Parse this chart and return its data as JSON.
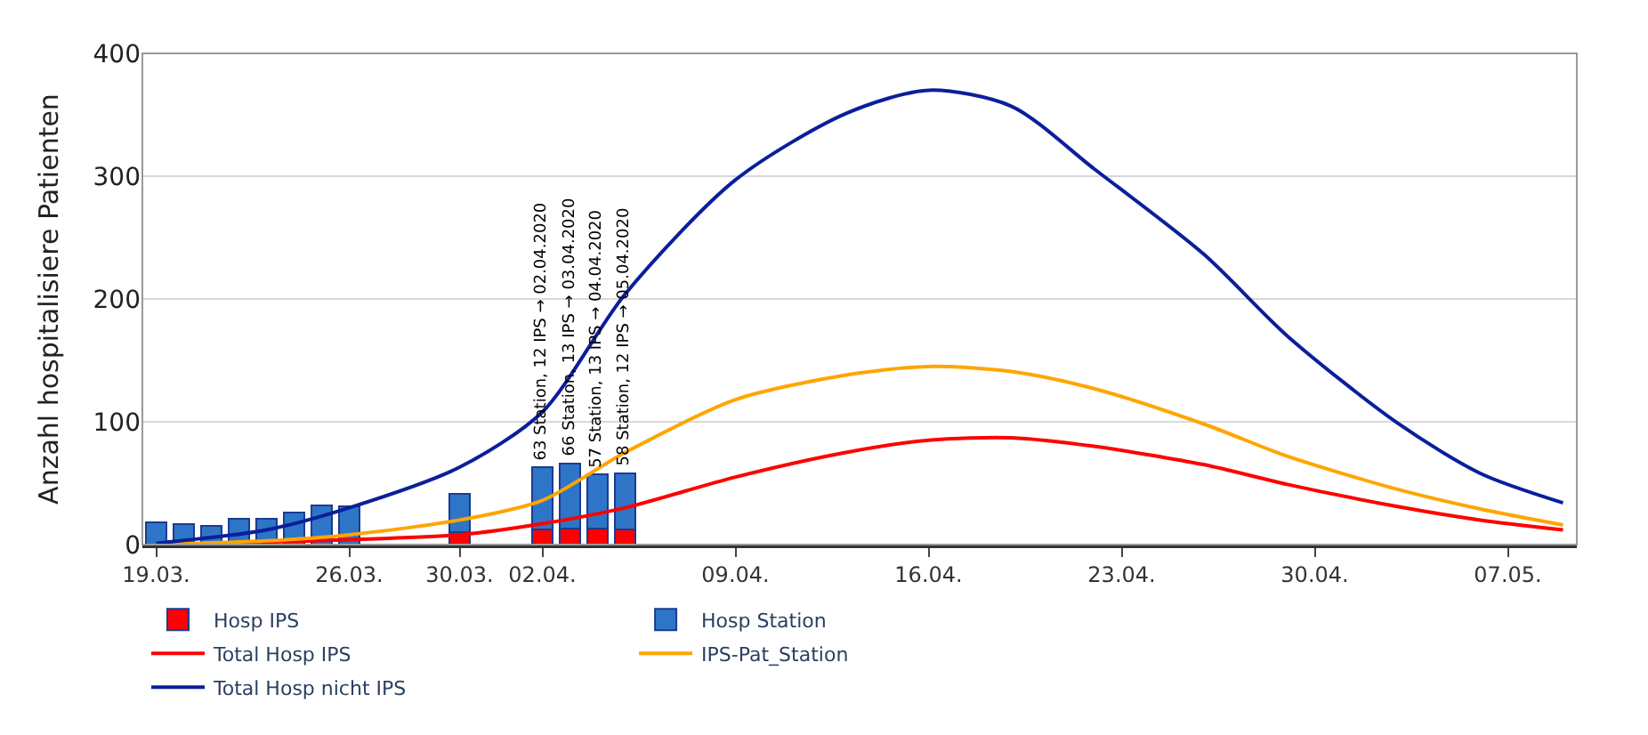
{
  "chart_data": {
    "type": "line",
    "ylabel": "Anzahl hospitalisiere Patienten",
    "x": [
      "2020-03-19",
      "2020-03-23",
      "2020-03-26",
      "2020-03-30",
      "2020-04-02",
      "2020-04-05",
      "2020-04-09",
      "2020-04-13",
      "2020-04-16",
      "2020-04-19",
      "2020-04-22",
      "2020-04-26",
      "2020-04-29",
      "2020-05-03",
      "2020-05-06",
      "2020-05-09"
    ],
    "stacked": true,
    "series": [
      {
        "name": "Hosp IPS",
        "type": "bar",
        "color": "#ff0000",
        "x": [
          "2020-03-19",
          "2020-03-20",
          "2020-03-21",
          "2020-03-22",
          "2020-03-23",
          "2020-03-24",
          "2020-03-25",
          "2020-03-26",
          "2020-03-30",
          "2020-04-02",
          "2020-04-03",
          "2020-04-04",
          "2020-04-05"
        ],
        "values": [
          0,
          0,
          0,
          0,
          0,
          0,
          0,
          0,
          10,
          12,
          13,
          13,
          12
        ]
      },
      {
        "name": "Hosp Station",
        "type": "bar",
        "color": "#2e75c8",
        "x": [
          "2020-03-19",
          "2020-03-20",
          "2020-03-21",
          "2020-03-22",
          "2020-03-23",
          "2020-03-24",
          "2020-03-25",
          "2020-03-26",
          "2020-03-30",
          "2020-04-02",
          "2020-04-03",
          "2020-04-04",
          "2020-04-05"
        ],
        "values": [
          18,
          17,
          15,
          21,
          21,
          26,
          32,
          31,
          31,
          51,
          53,
          44,
          46
        ]
      },
      {
        "name": "Total Hosp IPS",
        "color": "#ff0000",
        "values": [
          0,
          2,
          4,
          8,
          17,
          30,
          55,
          75,
          85,
          87,
          80,
          65,
          49,
          31,
          20,
          12
        ]
      },
      {
        "name": "IPS-Pat_Station",
        "color": "#ffa500",
        "values": [
          0,
          3,
          8,
          20,
          36,
          75,
          118,
          138,
          145,
          141,
          127,
          98,
          72,
          45,
          29,
          16
        ]
      },
      {
        "name": "Total Hosp nicht IPS",
        "color": "#0a1f9c",
        "values": [
          1,
          12,
          30,
          63,
          108,
          204,
          297,
          351,
          370,
          357,
          306,
          236,
          170,
          99,
          58,
          34
        ]
      }
    ],
    "annotations": [
      {
        "text": "63 Station, 12 IPS → 02.04.2020",
        "x": "2020-04-02",
        "y": 63
      },
      {
        "text": "66 Station, 13 IPS → 03.04.2020",
        "x": "2020-04-03",
        "y": 66
      },
      {
        "text": "57 Station, 13 IPS → 04.04.2020",
        "x": "2020-04-04",
        "y": 57
      },
      {
        "text": "58 Station, 12 IPS → 05.04.2020",
        "x": "2020-04-05",
        "y": 58
      }
    ],
    "xlim": [
      "2020-03-18T12:00",
      "2020-05-09T12:00"
    ],
    "xticks": [
      {
        "value": "2020-03-19",
        "label": "19.03."
      },
      {
        "value": "2020-03-26",
        "label": "26.03."
      },
      {
        "value": "2020-03-30",
        "label": "30.03."
      },
      {
        "value": "2020-04-02",
        "label": "02.04."
      },
      {
        "value": "2020-04-09",
        "label": "09.04."
      },
      {
        "value": "2020-04-16",
        "label": "16.04."
      },
      {
        "value": "2020-04-23",
        "label": "23.04."
      },
      {
        "value": "2020-04-30",
        "label": "30.04."
      },
      {
        "value": "2020-05-07",
        "label": "07.05."
      }
    ],
    "ylim": [
      0,
      400
    ],
    "yticks": [
      0,
      100,
      200,
      300,
      400
    ],
    "grid": "y",
    "legend": "bottom",
    "marker": "none",
    "line_style": "solid"
  }
}
